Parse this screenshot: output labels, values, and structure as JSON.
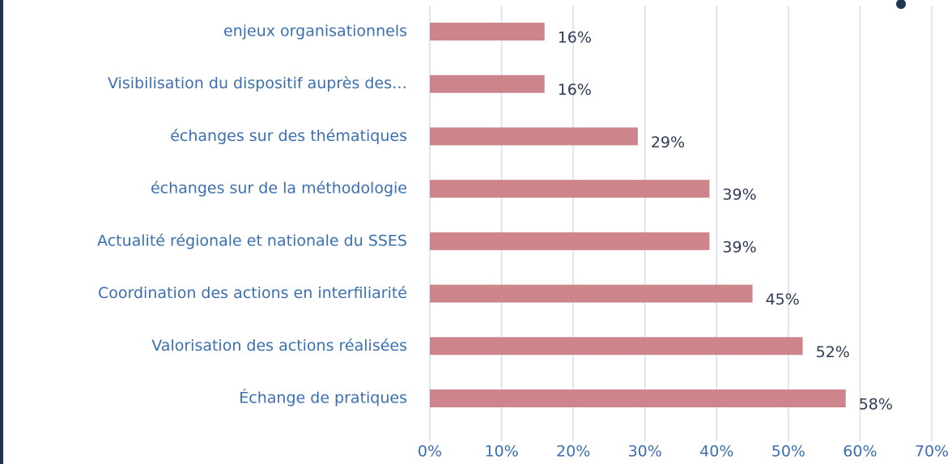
{
  "chart_data": {
    "type": "bar",
    "orientation": "horizontal",
    "categories": [
      "enjeux organisationnels",
      "Visibilisation du dispositif auprès des…",
      "échanges sur des thématiques",
      "échanges sur de la méthodologie",
      "Actualité régionale et nationale du SSES",
      "Coordination des actions en interfiliarité",
      "Valorisation des actions réalisées",
      "Échange de pratiques"
    ],
    "values": [
      16,
      16,
      29,
      39,
      39,
      45,
      52,
      58
    ],
    "value_labels": [
      "16%",
      "16%",
      "29%",
      "39%",
      "39%",
      "45%",
      "52%",
      "58%"
    ],
    "color": "#cd858b",
    "xlim": [
      0,
      70
    ],
    "xticks": [
      {
        "value": 0,
        "label": "0%"
      },
      {
        "value": 10,
        "label": "10%"
      },
      {
        "value": 20,
        "label": "20%"
      },
      {
        "value": 30,
        "label": "30%"
      },
      {
        "value": 40,
        "label": "40%"
      },
      {
        "value": 50,
        "label": "50%"
      },
      {
        "value": 60,
        "label": "60%"
      },
      {
        "value": 70,
        "label": "70%"
      }
    ],
    "grid": true
  }
}
